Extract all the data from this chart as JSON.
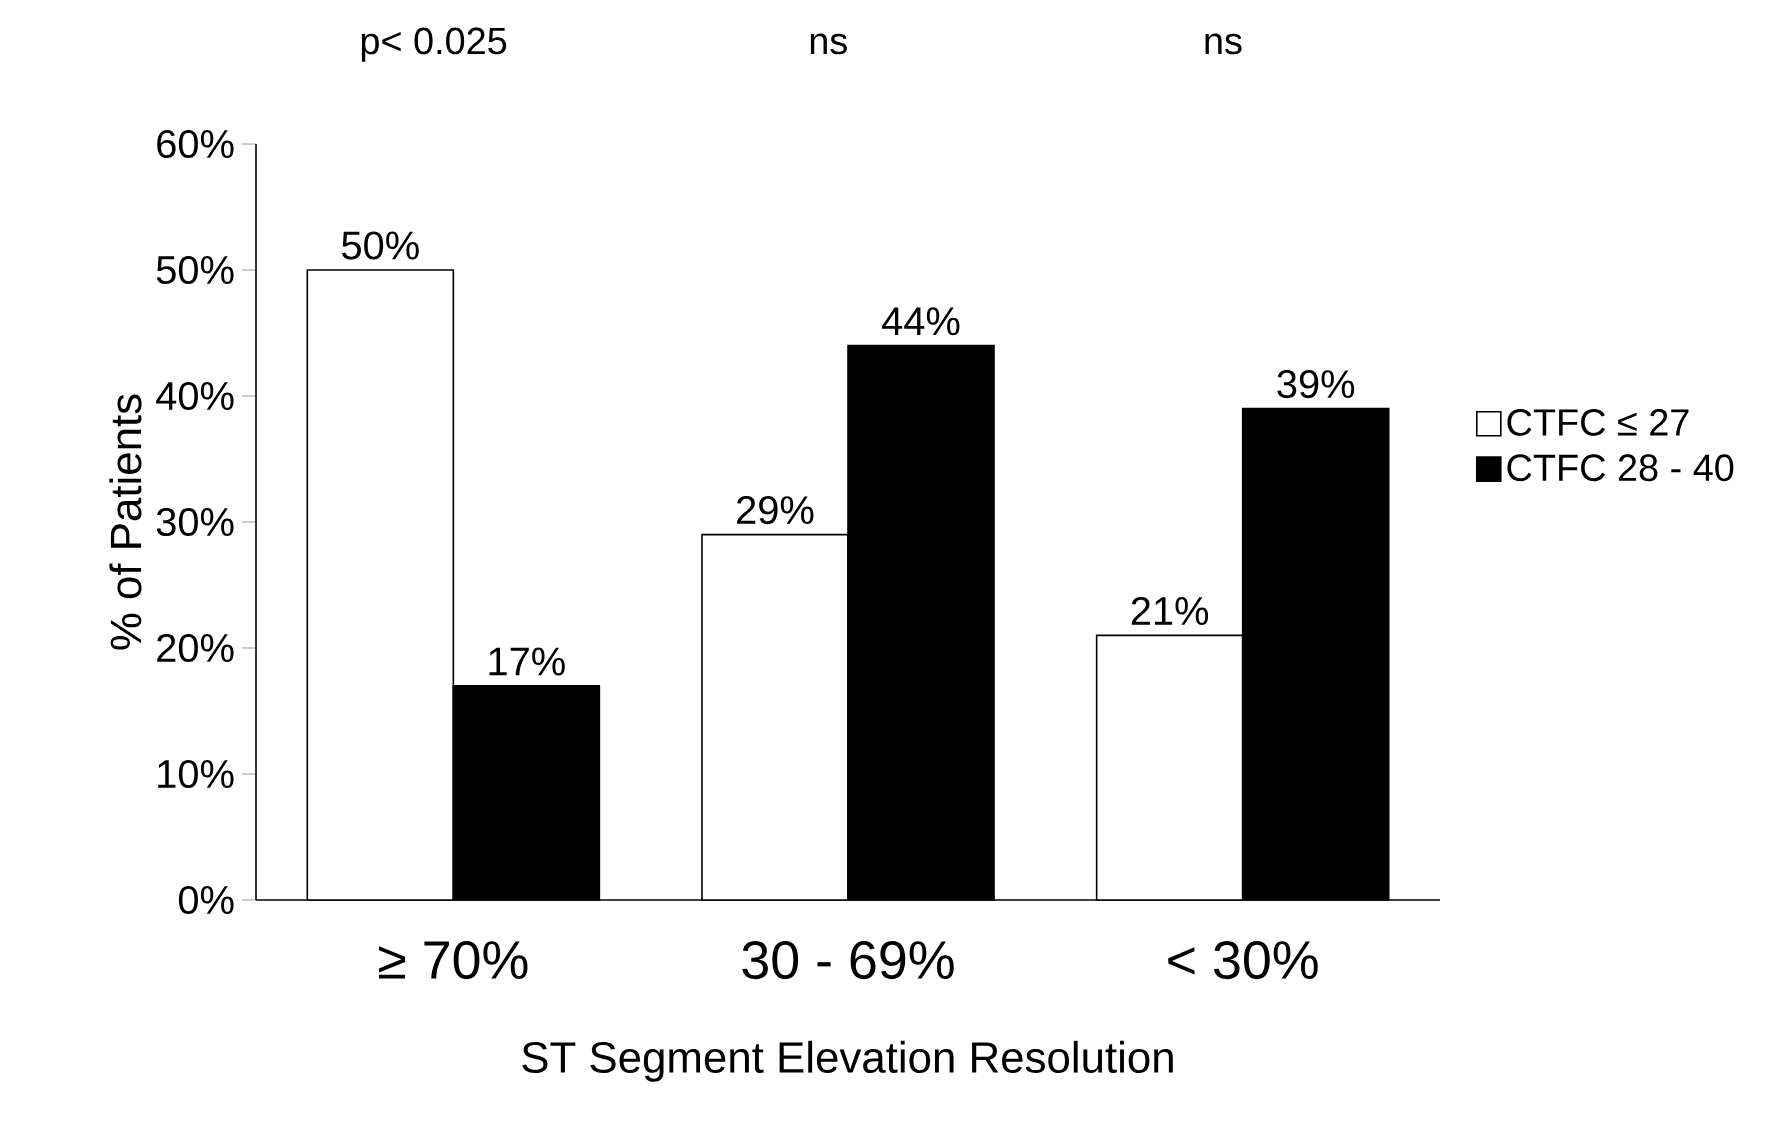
{
  "chart_data": {
    "type": "bar",
    "xlabel": "ST Segment Elevation Resolution",
    "ylabel": "% of Patients",
    "categories": [
      "≥ 70%",
      "30 - 69%",
      "< 30%"
    ],
    "series": [
      {
        "name": "CTFC ≤ 27",
        "color": "#ffffff",
        "values": [
          50,
          29,
          21
        ],
        "value_labels": [
          "50%",
          "29%",
          "21%"
        ]
      },
      {
        "name": "CTFC 28 - 40",
        "color": "#000000",
        "values": [
          17,
          44,
          39
        ],
        "value_labels": [
          "17%",
          "44%",
          "39%"
        ]
      }
    ],
    "ylim": [
      0,
      60
    ],
    "yticks": [
      {
        "value": 0,
        "label": "0%"
      },
      {
        "value": 10,
        "label": "10%"
      },
      {
        "value": 20,
        "label": "20%"
      },
      {
        "value": 30,
        "label": "30%"
      },
      {
        "value": 40,
        "label": "40%"
      },
      {
        "value": 50,
        "label": "50%"
      },
      {
        "value": 60,
        "label": "60%"
      }
    ],
    "annotations": [
      "p< 0.025",
      "ns",
      "ns"
    ],
    "legend": "right",
    "grid": false
  }
}
